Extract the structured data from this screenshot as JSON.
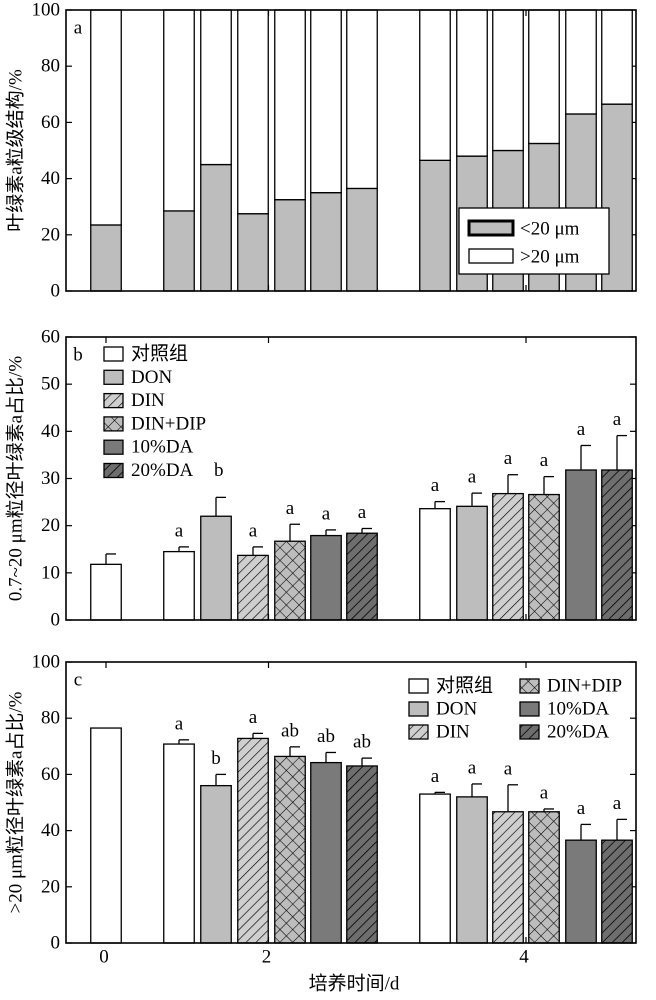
{
  "figure": {
    "xlabel": "培养时间/d",
    "x_ticks": [
      "0",
      "2",
      "4"
    ]
  },
  "colors": {
    "control": "#ffffff",
    "DON": "#bdbdbd",
    "DIN": "#cfcfcf",
    "DIN_DIP": "#bdbdbd",
    "DA10": "#7a7a7a",
    "DA20": "#6e6e6e",
    "small_fraction": "#bdbdbd",
    "large_fraction": "#ffffff"
  },
  "chart_data": [
    {
      "type": "bar",
      "stacked": true,
      "panel_letter": "a",
      "ylabel": "叶绿素a粒级结构/%",
      "ylim": [
        0,
        100
      ],
      "yticks": [
        "0",
        "20",
        "40",
        "60",
        "80",
        "100"
      ],
      "legend": [
        {
          "key": "small",
          "label": "<20 μm"
        },
        {
          "key": "large",
          "label": ">20 μm"
        }
      ],
      "categories": [
        "0 d 对照组",
        "2 d 对照组",
        "2 d DON",
        "2 d DIN",
        "2 d DIN+DIP",
        "2 d 10%DA",
        "2 d 20%DA",
        "4 d 对照组",
        "4 d DON",
        "4 d DIN",
        "4 d DIN+DIP",
        "4 d 10%DA",
        "4 d 20%DA"
      ],
      "series": [
        {
          "name": "<20 μm",
          "values": [
            23.5,
            28.5,
            45,
            27.5,
            32.5,
            35,
            36.5,
            46.5,
            48,
            50,
            52.5,
            63,
            66.5
          ]
        },
        {
          "name": ">20 μm",
          "values": [
            76.5,
            71.5,
            55,
            72.5,
            67.5,
            65,
            63.5,
            53.5,
            52,
            50,
            47.5,
            37,
            33.5
          ]
        }
      ]
    },
    {
      "type": "bar",
      "panel_letter": "b",
      "ylabel": "0.7~20 μm粒径叶绿素a占比/%",
      "ylim": [
        0,
        60
      ],
      "yticks": [
        "0",
        "10",
        "20",
        "30",
        "40",
        "50",
        "60"
      ],
      "legend": [
        {
          "key": "control",
          "label": "对照组"
        },
        {
          "key": "DON",
          "label": "DON"
        },
        {
          "key": "DIN",
          "label": "DIN"
        },
        {
          "key": "DIN_DIP",
          "label": "DIN+DIP"
        },
        {
          "key": "DA10",
          "label": "10%DA"
        },
        {
          "key": "DA20",
          "label": "20%DA"
        }
      ],
      "legend_trailing_label": "b",
      "bars": [
        {
          "day": "0",
          "treatment": "对照组",
          "value": 11.8,
          "error": 2.2,
          "sig": ""
        },
        {
          "day": "2",
          "treatment": "对照组",
          "value": 14.5,
          "error": 1.0,
          "sig": "a"
        },
        {
          "day": "2",
          "treatment": "DON",
          "value": 22.0,
          "error": 4.0,
          "sig": ""
        },
        {
          "day": "2",
          "treatment": "DIN",
          "value": 13.7,
          "error": 1.8,
          "sig": "a"
        },
        {
          "day": "2",
          "treatment": "DIN+DIP",
          "value": 16.7,
          "error": 3.6,
          "sig": "a"
        },
        {
          "day": "2",
          "treatment": "10%DA",
          "value": 17.9,
          "error": 1.2,
          "sig": "a"
        },
        {
          "day": "2",
          "treatment": "20%DA",
          "value": 18.4,
          "error": 1.0,
          "sig": "a"
        },
        {
          "day": "4",
          "treatment": "对照组",
          "value": 23.6,
          "error": 1.5,
          "sig": "a"
        },
        {
          "day": "4",
          "treatment": "DON",
          "value": 24.1,
          "error": 2.8,
          "sig": "a"
        },
        {
          "day": "4",
          "treatment": "DIN",
          "value": 26.8,
          "error": 4.0,
          "sig": "a"
        },
        {
          "day": "4",
          "treatment": "DIN+DIP",
          "value": 26.6,
          "error": 3.8,
          "sig": "a"
        },
        {
          "day": "4",
          "treatment": "10%DA",
          "value": 31.8,
          "error": 5.2,
          "sig": "a"
        },
        {
          "day": "4",
          "treatment": "20%DA",
          "value": 31.8,
          "error": 7.3,
          "sig": "a"
        }
      ]
    },
    {
      "type": "bar",
      "panel_letter": "c",
      "ylabel": ">20 μm粒径叶绿素a占比/%",
      "ylim": [
        0,
        100
      ],
      "yticks": [
        "0",
        "20",
        "40",
        "60",
        "80",
        "100"
      ],
      "legend": [
        {
          "key": "control",
          "label": "对照组"
        },
        {
          "key": "DON",
          "label": "DON"
        },
        {
          "key": "DIN",
          "label": "DIN"
        },
        {
          "key": "DIN_DIP",
          "label": "DIN+DIP"
        },
        {
          "key": "DA10",
          "label": "10%DA"
        },
        {
          "key": "DA20",
          "label": "20%DA"
        }
      ],
      "bars": [
        {
          "day": "0",
          "treatment": "对照组",
          "value": 76.5,
          "error": 0,
          "sig": ""
        },
        {
          "day": "2",
          "treatment": "对照组",
          "value": 70.8,
          "error": 1.5,
          "sig": "a"
        },
        {
          "day": "2",
          "treatment": "DON",
          "value": 56.0,
          "error": 4.0,
          "sig": "b"
        },
        {
          "day": "2",
          "treatment": "DIN",
          "value": 72.8,
          "error": 1.8,
          "sig": "a"
        },
        {
          "day": "2",
          "treatment": "DIN+DIP",
          "value": 66.4,
          "error": 3.4,
          "sig": "ab"
        },
        {
          "day": "2",
          "treatment": "10%DA",
          "value": 64.2,
          "error": 3.6,
          "sig": "ab"
        },
        {
          "day": "2",
          "treatment": "20%DA",
          "value": 63.0,
          "error": 2.8,
          "sig": "ab"
        },
        {
          "day": "4",
          "treatment": "对照组",
          "value": 53.0,
          "error": 0.6,
          "sig": "a"
        },
        {
          "day": "4",
          "treatment": "DON",
          "value": 52.0,
          "error": 4.6,
          "sig": "a"
        },
        {
          "day": "4",
          "treatment": "DIN",
          "value": 46.7,
          "error": 9.6,
          "sig": "a"
        },
        {
          "day": "4",
          "treatment": "DIN+DIP",
          "value": 46.7,
          "error": 1.0,
          "sig": "a"
        },
        {
          "day": "4",
          "treatment": "10%DA",
          "value": 36.6,
          "error": 5.6,
          "sig": "a"
        },
        {
          "day": "4",
          "treatment": "20%DA",
          "value": 36.6,
          "error": 7.4,
          "sig": "a"
        }
      ]
    }
  ]
}
